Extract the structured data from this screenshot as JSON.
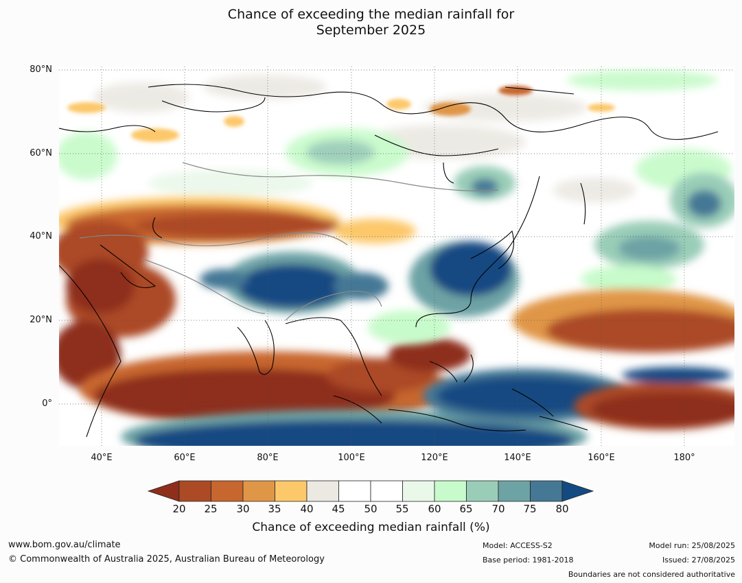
{
  "title_line1": "Chance of exceeding the median rainfall for",
  "title_line2": "September 2025",
  "lat_labels": [
    "80°N",
    "60°N",
    "40°N",
    "20°N",
    "0°"
  ],
  "lon_labels": [
    "40°E",
    "60°E",
    "80°E",
    "100°E",
    "120°E",
    "140°E",
    "160°E",
    "180°"
  ],
  "colorbar": {
    "ticks": [
      "20",
      "25",
      "30",
      "35",
      "40",
      "45",
      "50",
      "55",
      "60",
      "65",
      "70",
      "75",
      "80"
    ],
    "colors": [
      "#8e2e1b",
      "#ac4a25",
      "#c8662f",
      "#e09647",
      "#fcc86a",
      "#ece9e3",
      "#ffffff",
      "#ffffff",
      "#eaf8ea",
      "#c8fbcb",
      "#9acdb8",
      "#6da3a5",
      "#457895",
      "#134a82"
    ],
    "title": "Chance of exceeding median rainfall (%)"
  },
  "footer": {
    "url": "www.bom.gov.au/climate",
    "copyright": "© Commonwealth of Australia 2025, Australian Bureau of Meteorology",
    "model": "Model: ACCESS-S2",
    "base_period": "Base period: 1981-2018",
    "model_run": "Model run: 25/08/2025",
    "issued": "Issued: 27/08/2025",
    "disclaimer": "Boundaries are not considered authoritative"
  }
}
